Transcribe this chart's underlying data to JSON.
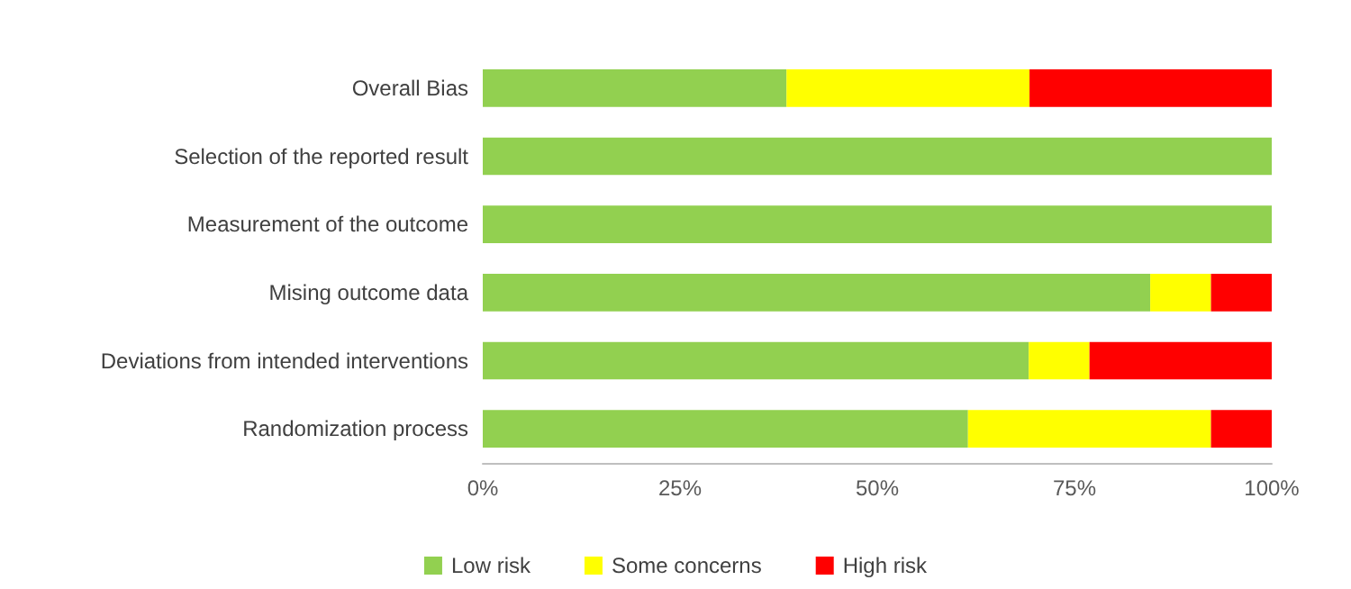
{
  "chart_data": {
    "type": "bar",
    "orientation": "horizontal",
    "stacked": true,
    "categories": [
      "Overall Bias",
      "Selection of the reported result",
      "Measurement of the outcome",
      "Mising outcome data",
      "Deviations from intended interventions",
      "Randomization process"
    ],
    "series": [
      {
        "name": "Low risk",
        "color": "#92d050",
        "values": [
          38.5,
          100,
          100,
          84.6,
          69.2,
          61.5
        ]
      },
      {
        "name": "Some concerns",
        "color": "#ffff00",
        "values": [
          30.8,
          0,
          0,
          7.7,
          7.7,
          30.8
        ]
      },
      {
        "name": "High risk",
        "color": "#ff0000",
        "values": [
          30.8,
          0,
          0,
          7.7,
          23.1,
          7.7
        ]
      }
    ],
    "xlim": [
      0,
      100
    ],
    "xticks": [
      {
        "value": 0,
        "label": "0%"
      },
      {
        "value": 25,
        "label": "25%"
      },
      {
        "value": 50,
        "label": "50%"
      },
      {
        "value": 75,
        "label": "75%"
      },
      {
        "value": 100,
        "label": "100%"
      }
    ],
    "grid": false,
    "legend": "bottom"
  }
}
